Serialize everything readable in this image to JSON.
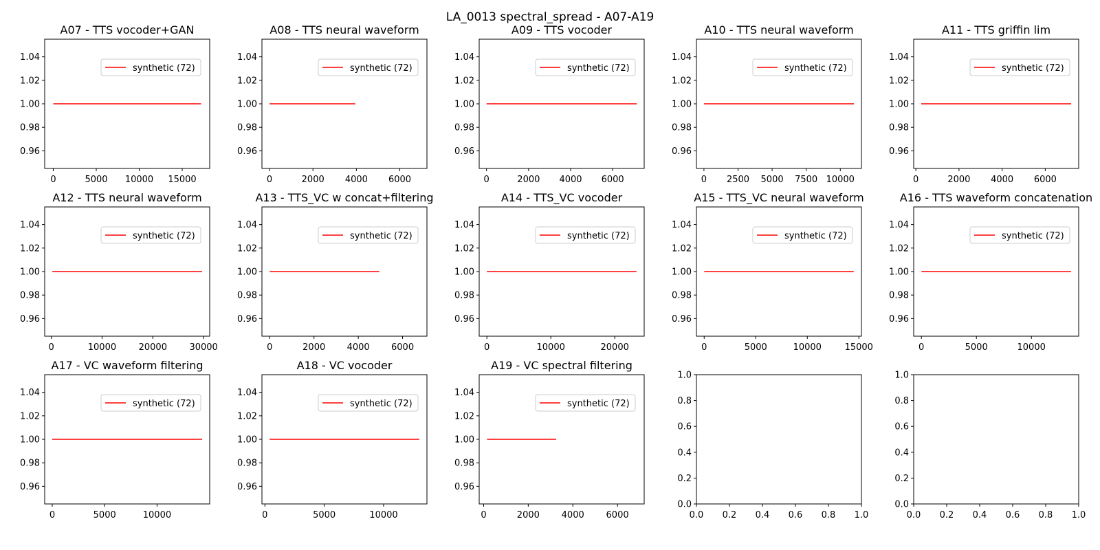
{
  "figure": {
    "title": "LA_0013 spectral_spread - A07-A19"
  },
  "chart_data": [
    {
      "type": "line",
      "title": "A07 - TTS vocoder+GAN",
      "legend": "upper right",
      "series": [
        {
          "name": "synthetic (72)",
          "color": "#ff0000",
          "x": [
            0,
            17200
          ],
          "y": [
            1.0,
            1.0
          ]
        }
      ],
      "xlim": [
        -1000,
        18200
      ],
      "ylim": [
        0.945,
        1.055
      ],
      "xticks": [
        0,
        5000,
        10000,
        15000
      ],
      "yticks": [
        0.96,
        0.98,
        1.0,
        1.02,
        1.04
      ]
    },
    {
      "type": "line",
      "title": "A08 - TTS neural waveform",
      "legend": "upper right",
      "series": [
        {
          "name": "synthetic (72)",
          "color": "#ff0000",
          "x": [
            0,
            3950
          ],
          "y": [
            1.0,
            1.0
          ]
        }
      ],
      "xlim": [
        -350,
        7250
      ],
      "ylim": [
        0.945,
        1.055
      ],
      "xticks": [
        0,
        2000,
        4000,
        6000
      ],
      "yticks": [
        0.96,
        0.98,
        1.0,
        1.02,
        1.04
      ]
    },
    {
      "type": "line",
      "title": "A09 - TTS vocoder",
      "legend": "upper right",
      "series": [
        {
          "name": "synthetic (72)",
          "color": "#ff0000",
          "x": [
            0,
            7150
          ],
          "y": [
            1.0,
            1.0
          ]
        }
      ],
      "xlim": [
        -350,
        7500
      ],
      "ylim": [
        0.945,
        1.055
      ],
      "xticks": [
        0,
        2000,
        4000,
        6000
      ],
      "yticks": [
        0.96,
        0.98,
        1.0,
        1.02,
        1.04
      ]
    },
    {
      "type": "line",
      "title": "A10 - TTS neural waveform",
      "legend": "upper right",
      "series": [
        {
          "name": "synthetic (72)",
          "color": "#ff0000",
          "x": [
            0,
            11000
          ],
          "y": [
            1.0,
            1.0
          ]
        }
      ],
      "xlim": [
        -550,
        11550
      ],
      "ylim": [
        0.945,
        1.055
      ],
      "xticks": [
        0,
        2500,
        5000,
        7500,
        10000
      ],
      "yticks": [
        0.96,
        0.98,
        1.0,
        1.02,
        1.04
      ]
    },
    {
      "type": "line",
      "title": "A11 - TTS griffin lim",
      "legend": "upper right",
      "series": [
        {
          "name": "synthetic (72)",
          "color": "#ff0000",
          "x": [
            250,
            7200
          ],
          "y": [
            1.0,
            1.0
          ]
        }
      ],
      "xlim": [
        -100,
        7550
      ],
      "ylim": [
        0.945,
        1.055
      ],
      "xticks": [
        0,
        2000,
        4000,
        6000
      ],
      "yticks": [
        0.96,
        0.98,
        1.0,
        1.02,
        1.04
      ]
    },
    {
      "type": "line",
      "title": "A12 - TTS neural waveform",
      "legend": "upper right",
      "series": [
        {
          "name": "synthetic (72)",
          "color": "#ff0000",
          "x": [
            200,
            29700
          ],
          "y": [
            1.0,
            1.0
          ]
        }
      ],
      "xlim": [
        -1300,
        31200
      ],
      "ylim": [
        0.945,
        1.055
      ],
      "xticks": [
        0,
        10000,
        20000,
        30000
      ],
      "yticks": [
        0.96,
        0.98,
        1.0,
        1.02,
        1.04
      ]
    },
    {
      "type": "line",
      "title": "A13 - TTS_VC w concat+filtering",
      "legend": "upper right",
      "series": [
        {
          "name": "synthetic (72)",
          "color": "#ff0000",
          "x": [
            0,
            4950
          ],
          "y": [
            1.0,
            1.0
          ]
        }
      ],
      "xlim": [
        -350,
        7100
      ],
      "ylim": [
        0.945,
        1.055
      ],
      "xticks": [
        0,
        2000,
        4000,
        6000
      ],
      "yticks": [
        0.96,
        0.98,
        1.0,
        1.02,
        1.04
      ]
    },
    {
      "type": "line",
      "title": "A14 - TTS_VC vocoder",
      "legend": "upper right",
      "series": [
        {
          "name": "synthetic (72)",
          "color": "#ff0000",
          "x": [
            0,
            23400
          ],
          "y": [
            1.0,
            1.0
          ]
        }
      ],
      "xlim": [
        -1200,
        24600
      ],
      "ylim": [
        0.945,
        1.055
      ],
      "xticks": [
        0,
        10000,
        20000
      ],
      "yticks": [
        0.96,
        0.98,
        1.0,
        1.02,
        1.04
      ]
    },
    {
      "type": "line",
      "title": "A15 - TTS_VC neural waveform",
      "legend": "upper right",
      "series": [
        {
          "name": "synthetic (72)",
          "color": "#ff0000",
          "x": [
            0,
            14500
          ],
          "y": [
            1.0,
            1.0
          ]
        }
      ],
      "xlim": [
        -750,
        15250
      ],
      "ylim": [
        0.945,
        1.055
      ],
      "xticks": [
        0,
        5000,
        10000,
        15000
      ],
      "yticks": [
        0.96,
        0.98,
        1.0,
        1.02,
        1.04
      ]
    },
    {
      "type": "line",
      "title": "A16 - TTS waveform concatenation",
      "legend": "upper right",
      "series": [
        {
          "name": "synthetic (72)",
          "color": "#ff0000",
          "x": [
            0,
            13600
          ],
          "y": [
            1.0,
            1.0
          ]
        }
      ],
      "xlim": [
        -700,
        14300
      ],
      "ylim": [
        0.945,
        1.055
      ],
      "xticks": [
        0,
        5000,
        10000
      ],
      "yticks": [
        0.96,
        0.98,
        1.0,
        1.02,
        1.04
      ]
    },
    {
      "type": "line",
      "title": "A17 - VC waveform filtering",
      "legend": "upper right",
      "series": [
        {
          "name": "synthetic (72)",
          "color": "#ff0000",
          "x": [
            0,
            14300
          ],
          "y": [
            1.0,
            1.0
          ]
        }
      ],
      "xlim": [
        -720,
        15020
      ],
      "ylim": [
        0.945,
        1.055
      ],
      "xticks": [
        0,
        5000,
        10000
      ],
      "yticks": [
        0.96,
        0.98,
        1.0,
        1.02,
        1.04
      ]
    },
    {
      "type": "line",
      "title": "A18 - VC vocoder",
      "legend": "upper right",
      "series": [
        {
          "name": "synthetic (72)",
          "color": "#ff0000",
          "x": [
            400,
            13000
          ],
          "y": [
            1.0,
            1.0
          ]
        }
      ],
      "xlim": [
        -250,
        13650
      ],
      "ylim": [
        0.945,
        1.055
      ],
      "xticks": [
        0,
        5000,
        10000
      ],
      "yticks": [
        0.96,
        0.98,
        1.0,
        1.02,
        1.04
      ]
    },
    {
      "type": "line",
      "title": "A19 - VC spectral filtering",
      "legend": "upper right",
      "series": [
        {
          "name": "synthetic (72)",
          "color": "#ff0000",
          "x": [
            150,
            3250
          ],
          "y": [
            1.0,
            1.0
          ]
        }
      ],
      "xlim": [
        -200,
        7200
      ],
      "ylim": [
        0.945,
        1.055
      ],
      "xticks": [
        0,
        2000,
        4000,
        6000
      ],
      "yticks": [
        0.96,
        0.98,
        1.0,
        1.02,
        1.04
      ]
    },
    {
      "type": "line",
      "title": "",
      "series": [],
      "xlim": [
        0,
        1
      ],
      "ylim": [
        0,
        1
      ],
      "xticks": [
        0.0,
        0.2,
        0.4,
        0.6,
        0.8,
        1.0
      ],
      "yticks": [
        0.0,
        0.2,
        0.4,
        0.6,
        0.8,
        1.0
      ]
    },
    {
      "type": "line",
      "title": "",
      "series": [],
      "xlim": [
        0,
        1
      ],
      "ylim": [
        0,
        1
      ],
      "xticks": [
        0.0,
        0.2,
        0.4,
        0.6,
        0.8,
        1.0
      ],
      "yticks": [
        0.0,
        0.2,
        0.4,
        0.6,
        0.8,
        1.0
      ]
    }
  ]
}
